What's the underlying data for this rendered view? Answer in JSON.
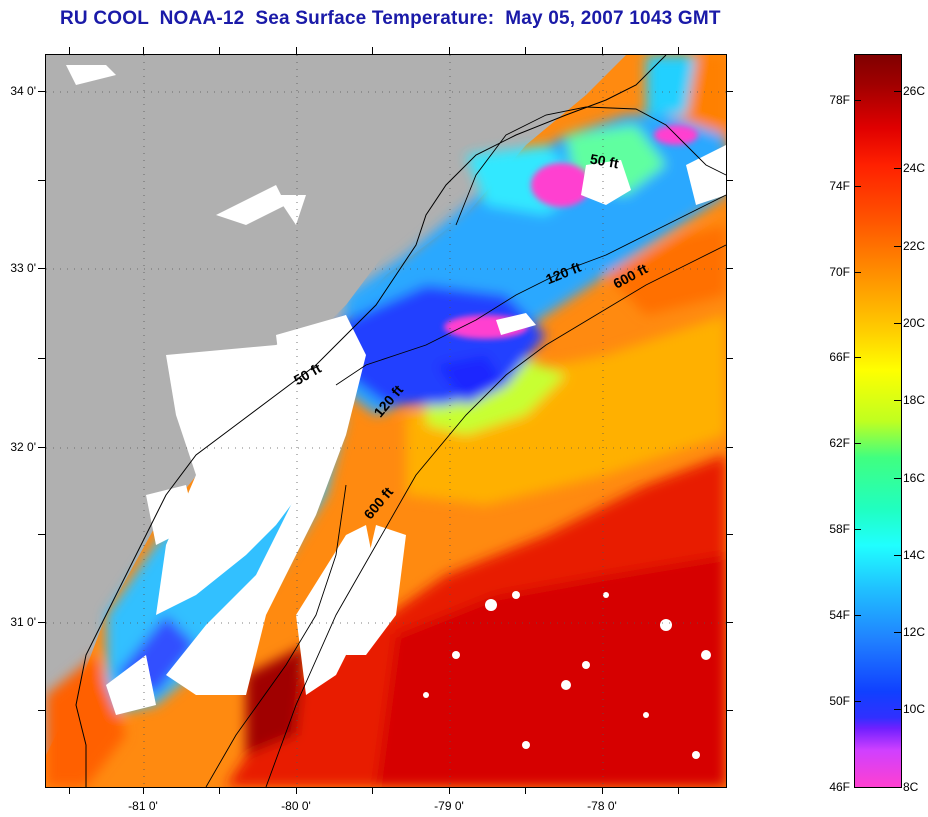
{
  "title": "RU COOL  NOAA-12  Sea Surface Temperature:  May 05, 2007 1043 GMT",
  "latitude_labels": [
    "34 0'",
    "33 0'",
    "32 0'",
    "31 0'"
  ],
  "longitude_labels": [
    "-81 0'",
    "-80 0'",
    "-79 0'",
    "-78 0'"
  ],
  "contour_labels": {
    "c50_north": "50 ft",
    "c120_north": "120 ft",
    "c600_north": "600 ft",
    "c50_south": "50 ft",
    "c120_south": "120 ft",
    "c600_south": "600 ft"
  },
  "colorbar": {
    "fahrenheit_labels": [
      "78F",
      "74F",
      "70F",
      "66F",
      "62F",
      "58F",
      "54F",
      "50F",
      "46F"
    ],
    "celsius_labels": [
      "26C",
      "24C",
      "22C",
      "20C",
      "18C",
      "16C",
      "14C",
      "12C",
      "10C",
      "8C"
    ]
  },
  "colors": {
    "land": "#b0b0b0",
    "cloud": "#ffffff",
    "title": "#1a1aa8"
  }
}
